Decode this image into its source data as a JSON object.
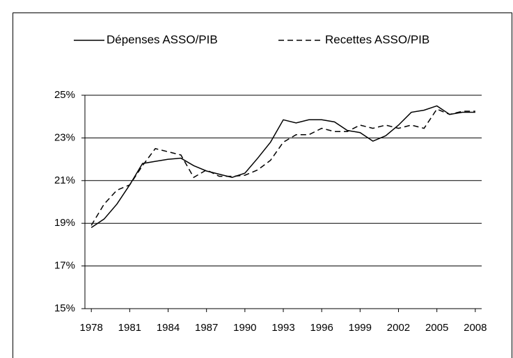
{
  "chart_data": {
    "type": "line",
    "x": [
      1978,
      1979,
      1980,
      1981,
      1982,
      1983,
      1984,
      1985,
      1986,
      1987,
      1988,
      1989,
      1990,
      1991,
      1992,
      1993,
      1994,
      1995,
      1996,
      1997,
      1998,
      1999,
      2000,
      2001,
      2002,
      2003,
      2004,
      2005,
      2006,
      2007,
      2008
    ],
    "series": [
      {
        "name": "Dépenses ASSO/PIB",
        "color": "#000000",
        "style": "solid",
        "values": [
          18.8,
          19.2,
          19.9,
          20.8,
          21.8,
          21.9,
          22.0,
          22.05,
          21.7,
          21.45,
          21.3,
          21.15,
          21.35,
          22.05,
          22.8,
          23.85,
          23.7,
          23.85,
          23.85,
          23.75,
          23.35,
          23.25,
          22.85,
          23.1,
          23.6,
          24.2,
          24.3,
          24.5,
          24.1,
          24.2,
          24.2
        ]
      },
      {
        "name": "Recettes ASSO/PIB",
        "color": "#000000",
        "style": "dashed",
        "values": [
          18.9,
          19.9,
          20.55,
          20.8,
          21.7,
          22.5,
          22.35,
          22.2,
          21.15,
          21.5,
          21.2,
          21.2,
          21.25,
          21.5,
          21.95,
          22.8,
          23.15,
          23.15,
          23.45,
          23.3,
          23.3,
          23.6,
          23.45,
          23.6,
          23.45,
          23.6,
          23.45,
          24.35,
          24.1,
          24.25,
          24.25
        ]
      }
    ],
    "xlim": [
      1977.5,
      2008.5
    ],
    "xticks": [
      1978,
      1981,
      1984,
      1987,
      1990,
      1993,
      1996,
      1999,
      2002,
      2005,
      2008
    ],
    "ylim": [
      15,
      25
    ],
    "yticks": [
      {
        "value": 15,
        "label": "15%"
      },
      {
        "value": 17,
        "label": "17%"
      },
      {
        "value": 19,
        "label": "19%"
      },
      {
        "value": 21,
        "label": "21%"
      },
      {
        "value": 23,
        "label": "23%"
      },
      {
        "value": 25,
        "label": "25%"
      }
    ],
    "grid": true,
    "legend": "top"
  }
}
